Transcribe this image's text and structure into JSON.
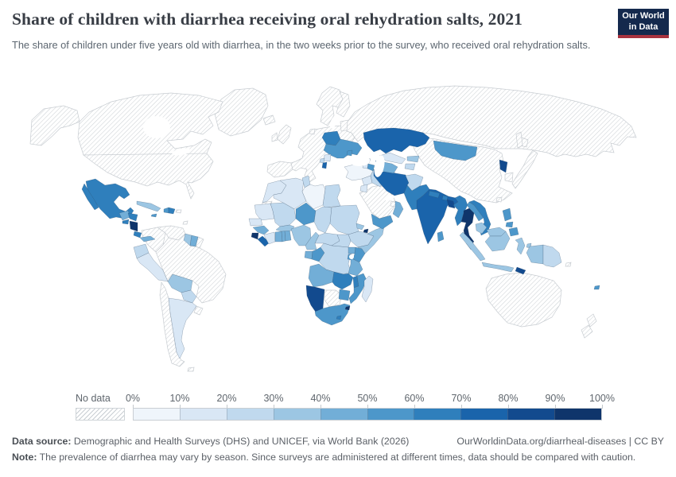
{
  "header": {
    "title": "Share of children with diarrhea receiving oral rehydration salts, 2021",
    "subtitle": "The share of children under five years old with diarrhea, in the two weeks prior to the survey, who received oral rehydration salts.",
    "logo_line1": "Our World",
    "logo_line2": "in Data",
    "logo_bg": "#14294d",
    "logo_accent": "#a8333f"
  },
  "legend": {
    "no_data_label": "No data",
    "tick_labels": [
      "0%",
      "10%",
      "20%",
      "30%",
      "40%",
      "50%",
      "60%",
      "70%",
      "80%",
      "90%",
      "100%"
    ]
  },
  "footer": {
    "source_label": "Data source:",
    "source_text": " Demographic and Health Surveys (DHS) and UNICEF, via World Bank (2026)",
    "link_text": "OurWorldinData.org/diarrheal-diseases | CC BY",
    "note_label": "Note:",
    "note_text": " The prevalence of diarrhea may vary by season. Since surveys are administered at different times, data should be compared with caution."
  },
  "chart_data": {
    "type": "choropleth_map",
    "title": "Share of children with diarrhea receiving oral rehydration salts, 2021",
    "unit": "% of children under five with diarrhea receiving ORS",
    "legend_position": "bottom",
    "bins": [
      "0-10%",
      "10-20%",
      "20-30%",
      "30-40%",
      "40-50%",
      "50-60%",
      "60-70%",
      "70-80%",
      "80-90%",
      "90-100%"
    ],
    "bin_colors": [
      "#eff5fb",
      "#d9e7f5",
      "#c0d9ee",
      "#9cc6e3",
      "#72aed7",
      "#4d97ca",
      "#2f7fbc",
      "#1a64ab",
      "#124a8e",
      "#0f356b"
    ],
    "no_data_pattern": "diagonal-hatch",
    "countries": {
      "mexico": 6,
      "guatemala": 4,
      "el_salvador": 6,
      "honduras": 6,
      "nicaragua": 9,
      "costa_rica": 6,
      "panama": 4,
      "cuba": 3,
      "jamaica": 5,
      "haiti": 5,
      "dominican_republic": 6,
      "guyana": 3,
      "suriname": 4,
      "ecuador": 2,
      "peru": 1,
      "bolivia": 3,
      "paraguay": 2,
      "argentina": 1,
      "morocco": 1,
      "algeria": 1,
      "tunisia": 2,
      "libya": 0,
      "egypt": 2,
      "mauritania": 1,
      "mali": 2,
      "niger": 5,
      "chad": 2,
      "sudan": 2,
      "eritrea": 3,
      "djibouti": 9,
      "ethiopia": 2,
      "somalia": 3,
      "senegal": 1,
      "guinea": 4,
      "sierra_leone": 9,
      "liberia": 7,
      "cote_divoire": 1,
      "ghana": 4,
      "togo": 4,
      "benin": 4,
      "burkina_faso": 3,
      "nigeria": 3,
      "cameroon": 3,
      "central_african_republic": 2,
      "south_sudan": 2,
      "gabon": 4,
      "congo": 5,
      "dr_congo": 2,
      "uganda": 4,
      "kenya": 5,
      "rwanda_burundi": 5,
      "tanzania": 4,
      "angola": 4,
      "zambia": 6,
      "malawi": 6,
      "mozambique": 5,
      "zimbabwe": 5,
      "namibia": 8,
      "south_africa": 5,
      "lesotho": 6,
      "eswatini": 9,
      "madagascar": 1,
      "belarus": 6,
      "ukraine": 5,
      "moldova": 5,
      "serbia": 1,
      "montenegro": 2,
      "albania": 7,
      "turkey": 0,
      "georgia": 0,
      "armenia": 1,
      "azerbaijan": 5,
      "syria": 1,
      "iraq": 2,
      "jordan": 1,
      "yemen": 5,
      "oman": 4,
      "iran": 7,
      "kazakhstan": 7,
      "uzbekistan": 1,
      "turkmenistan": 4,
      "kyrgyzstan": 3,
      "tajikistan": 2,
      "afghanistan": 2,
      "pakistan": 6,
      "india": 7,
      "nepal": 6,
      "bhutan": 6,
      "bangladesh": 8,
      "sri_lanka": 5,
      "myanmar": 6,
      "thailand": 9,
      "laos": 5,
      "cambodia": 3,
      "vietnam": 6,
      "mongolia": 5,
      "north_korea": 8,
      "philippines": 5,
      "malaysia": 3,
      "indonesia": 3,
      "timor": 8,
      "papua_new_guinea": 2,
      "fiji": 5
    },
    "no_data_regions": [
      "canada",
      "united_states",
      "greenland",
      "iceland",
      "alaska",
      "colombia",
      "venezuela",
      "french_guiana",
      "brazil",
      "chile",
      "uruguay",
      "falkland_islands",
      "europe",
      "iberia",
      "uk",
      "ireland",
      "scandinavia",
      "finland",
      "denmark",
      "baltics",
      "russia",
      "china",
      "taiwan",
      "south_korea",
      "japan",
      "sakhalin",
      "saudi_arabia",
      "uae",
      "western_sahara",
      "botswana",
      "puerto_rico",
      "trinidad",
      "solomon_islands",
      "australia",
      "new_zealand"
    ]
  }
}
